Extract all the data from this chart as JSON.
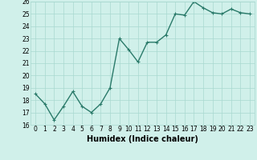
{
  "x": [
    0,
    1,
    2,
    3,
    4,
    5,
    6,
    7,
    8,
    9,
    10,
    11,
    12,
    13,
    14,
    15,
    16,
    17,
    18,
    19,
    20,
    21,
    22,
    23
  ],
  "y": [
    18.5,
    17.7,
    16.4,
    17.5,
    18.7,
    17.5,
    17.0,
    17.7,
    19.0,
    23.0,
    22.1,
    21.1,
    22.7,
    22.7,
    23.3,
    25.0,
    24.9,
    26.0,
    25.5,
    25.1,
    25.0,
    25.4,
    25.1,
    25.0
  ],
  "line_color": "#2a7a6a",
  "marker": "+",
  "marker_size": 3,
  "background_color": "#d0f0ea",
  "grid_color": "#a8d8d0",
  "xlabel": "Humidex (Indice chaleur)",
  "xlim": [
    -0.5,
    23.5
  ],
  "ylim": [
    16,
    26
  ],
  "yticks": [
    16,
    17,
    18,
    19,
    20,
    21,
    22,
    23,
    24,
    25,
    26
  ],
  "xticks": [
    0,
    1,
    2,
    3,
    4,
    5,
    6,
    7,
    8,
    9,
    10,
    11,
    12,
    13,
    14,
    15,
    16,
    17,
    18,
    19,
    20,
    21,
    22,
    23
  ],
  "xtick_labels": [
    "0",
    "1",
    "2",
    "3",
    "4",
    "5",
    "6",
    "7",
    "8",
    "9",
    "10",
    "11",
    "12",
    "13",
    "14",
    "15",
    "16",
    "17",
    "18",
    "19",
    "20",
    "21",
    "22",
    "23"
  ],
  "tick_fontsize": 5.5,
  "xlabel_fontsize": 7.0,
  "linewidth": 1.0,
  "markeredgewidth": 0.8
}
